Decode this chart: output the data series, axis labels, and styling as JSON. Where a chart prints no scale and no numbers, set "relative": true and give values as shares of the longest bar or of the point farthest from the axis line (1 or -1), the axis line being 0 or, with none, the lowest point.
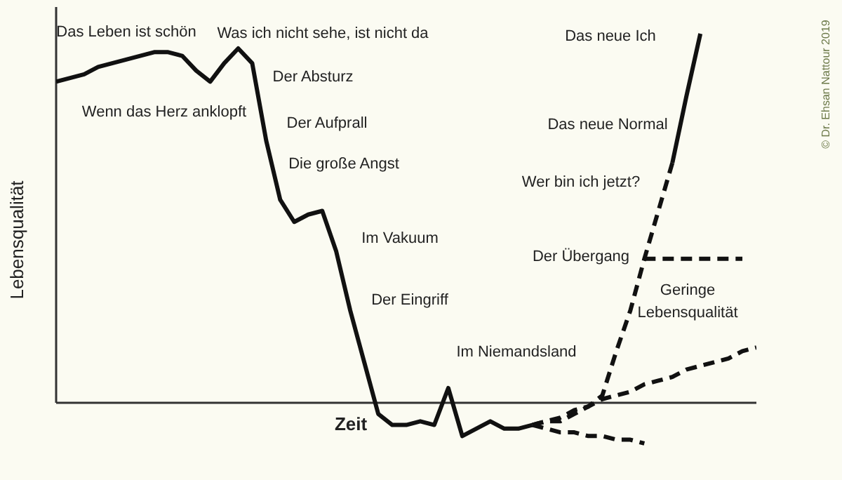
{
  "chart_data": {
    "type": "line",
    "relative": true,
    "xlabel": "Zeit",
    "ylabel": "Lebensqualität",
    "marker": "none",
    "categories": [
      null,
      null,
      null,
      null,
      null,
      null,
      null,
      null,
      null,
      null,
      null,
      null,
      null,
      null,
      null,
      null,
      null,
      null,
      null,
      null,
      null,
      null,
      null,
      null,
      null,
      null,
      null,
      null,
      null,
      null,
      null,
      null,
      null,
      null,
      null,
      null,
      null,
      null,
      null,
      null,
      null,
      null,
      null,
      null,
      null,
      null,
      null,
      null,
      null,
      null,
      null
    ],
    "series": [
      {
        "color": "#111111",
        "line_style": "solid",
        "values": [
          0.87,
          0.88,
          0.89,
          0.91,
          0.92,
          0.93,
          0.94,
          0.95,
          0.95,
          0.94,
          0.9,
          0.87,
          0.92,
          0.96,
          0.92,
          0.71,
          0.55,
          0.49,
          0.51,
          0.52,
          0.41,
          0.25,
          0.11,
          -0.03,
          -0.06,
          -0.06,
          -0.05,
          -0.06,
          0.04,
          -0.09,
          -0.07,
          -0.05,
          -0.07,
          -0.07,
          -0.06,
          null,
          null,
          null,
          null,
          null,
          null,
          null,
          null,
          null,
          null,
          null,
          null,
          null,
          null,
          null,
          null
        ]
      },
      {
        "color": "#111111",
        "line_style": "dashed",
        "values": [
          null,
          null,
          null,
          null,
          null,
          null,
          null,
          null,
          null,
          null,
          null,
          null,
          null,
          null,
          null,
          null,
          null,
          null,
          null,
          null,
          null,
          null,
          null,
          null,
          null,
          null,
          null,
          null,
          null,
          null,
          null,
          null,
          null,
          null,
          -0.06,
          -0.05,
          -0.05,
          -0.03,
          -0.01,
          0.02,
          0.14,
          0.25,
          0.39,
          0.52,
          0.65,
          null,
          null,
          null,
          null,
          null,
          null
        ]
      },
      {
        "color": "#111111",
        "line_style": "solid",
        "values": [
          null,
          null,
          null,
          null,
          null,
          null,
          null,
          null,
          null,
          null,
          null,
          null,
          null,
          null,
          null,
          null,
          null,
          null,
          null,
          null,
          null,
          null,
          null,
          null,
          null,
          null,
          null,
          null,
          null,
          null,
          null,
          null,
          null,
          null,
          null,
          null,
          null,
          null,
          null,
          null,
          null,
          null,
          null,
          null,
          0.65,
          0.83,
          1.0,
          null,
          null,
          null,
          null
        ]
      },
      {
        "color": "#111111",
        "line_style": "dashed",
        "values": [
          null,
          null,
          null,
          null,
          null,
          null,
          null,
          null,
          null,
          null,
          null,
          null,
          null,
          null,
          null,
          null,
          null,
          null,
          null,
          null,
          null,
          null,
          null,
          null,
          null,
          null,
          null,
          null,
          null,
          null,
          null,
          null,
          null,
          null,
          null,
          null,
          null,
          null,
          null,
          null,
          null,
          null,
          0.39,
          0.39,
          0.39,
          0.39,
          0.39,
          0.39,
          0.39,
          0.39,
          null
        ]
      },
      {
        "color": "#111111",
        "line_style": "dashed",
        "values": [
          null,
          null,
          null,
          null,
          null,
          null,
          null,
          null,
          null,
          null,
          null,
          null,
          null,
          null,
          null,
          null,
          null,
          null,
          null,
          null,
          null,
          null,
          null,
          null,
          null,
          null,
          null,
          null,
          null,
          null,
          null,
          null,
          null,
          null,
          -0.06,
          -0.05,
          -0.04,
          -0.02,
          -0.01,
          0.01,
          0.02,
          0.03,
          0.05,
          0.06,
          0.07,
          0.09,
          0.1,
          0.11,
          0.12,
          0.14,
          0.15
        ]
      },
      {
        "color": "#111111",
        "line_style": "dashed",
        "values": [
          null,
          null,
          null,
          null,
          null,
          null,
          null,
          null,
          null,
          null,
          null,
          null,
          null,
          null,
          null,
          null,
          null,
          null,
          null,
          null,
          null,
          null,
          null,
          null,
          null,
          null,
          null,
          null,
          null,
          null,
          null,
          null,
          null,
          null,
          -0.06,
          -0.07,
          -0.08,
          -0.08,
          -0.09,
          -0.09,
          -0.1,
          -0.1,
          -0.11,
          null,
          null,
          null,
          null,
          null,
          null,
          null,
          null
        ]
      }
    ],
    "annotations": [
      "Das Leben ist schön",
      "Wenn das Herz anklopft",
      "Was ich nicht sehe, ist nicht da",
      "Der Absturz",
      "Der Aufprall",
      "Die große Angst",
      "Im Vakuum",
      "Der Eingriff",
      "Im Niemandsland",
      "Der Übergang",
      "Geringe\nLebensqualität",
      "Wer bin ich jetzt?",
      "Das neue Normal",
      "Das neue Ich",
      "© Dr. Ehsan Nattour 2019"
    ]
  }
}
